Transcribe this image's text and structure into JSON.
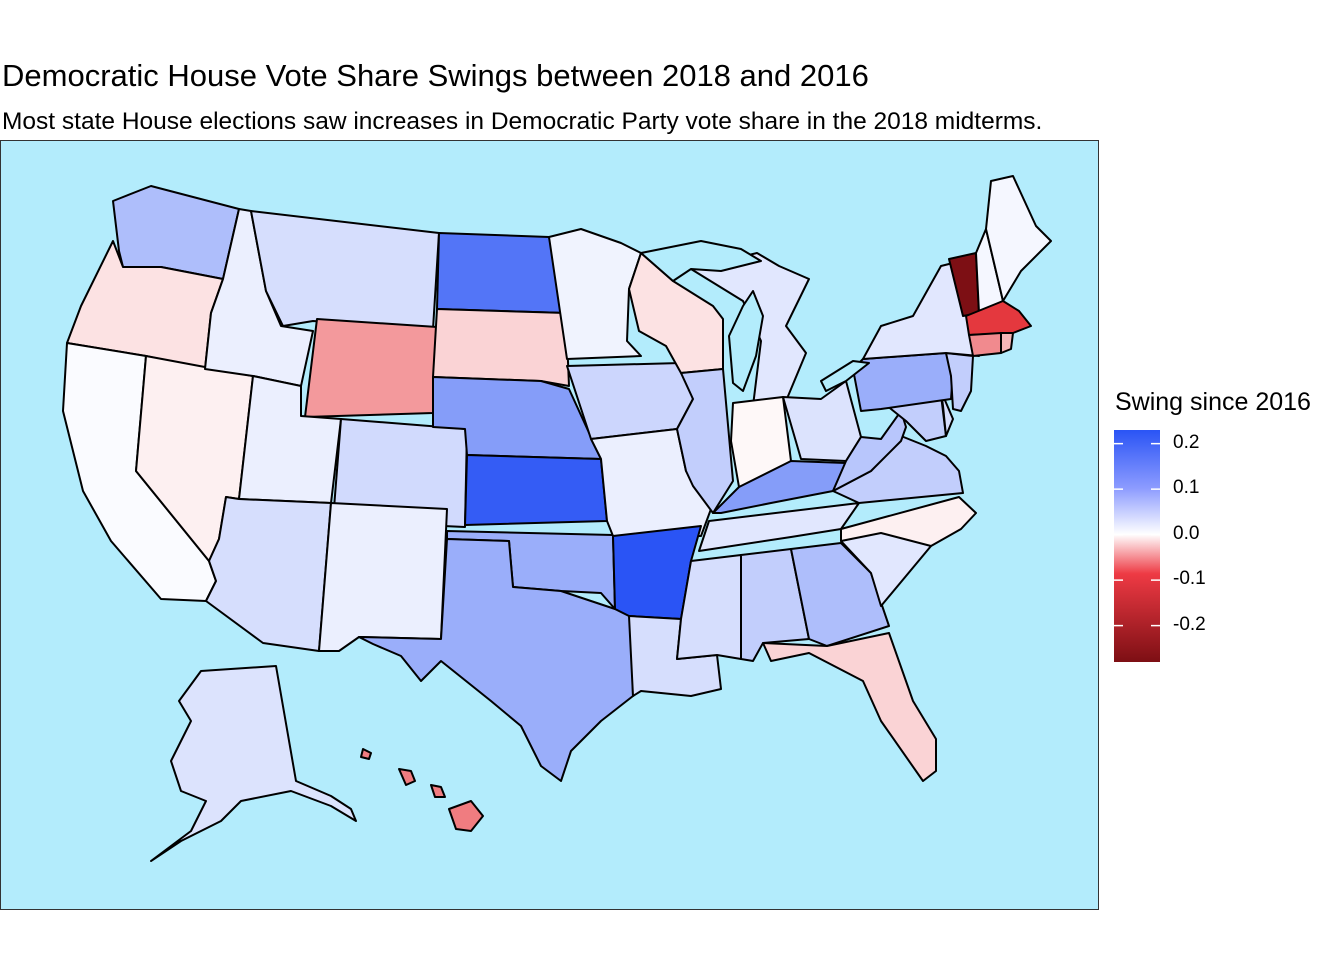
{
  "title": "Democratic House Vote Share Swings between 2018 and 2016",
  "subtitle": "Most state House elections saw increases in Democratic Party vote share in the 2018 midterms.",
  "legend": {
    "title": "Swing since 2016",
    "ticks": [
      "0.2",
      "0.1",
      "0.0",
      "-0.1",
      "-0.2"
    ],
    "tick_values": [
      0.2,
      0.1,
      0.0,
      -0.1,
      -0.2
    ],
    "range": [
      -0.28,
      0.23
    ],
    "colors": {
      "high": "#2a54f5",
      "mid": "#ffffff",
      "low": "#7d0f14"
    },
    "placement": "right"
  },
  "colors": {
    "ocean": "#b3ecfc",
    "border": "#000000"
  },
  "chart_data": {
    "type": "choropleth",
    "variable": "Swing since 2016",
    "states": [
      {
        "name": "Washington",
        "value": 0.08
      },
      {
        "name": "Oregon",
        "value": -0.02
      },
      {
        "name": "California",
        "value": 0.005
      },
      {
        "name": "Nevada",
        "value": -0.01
      },
      {
        "name": "Idaho",
        "value": 0.02
      },
      {
        "name": "Montana",
        "value": 0.04
      },
      {
        "name": "Wyoming",
        "value": -0.07
      },
      {
        "name": "Utah",
        "value": 0.02
      },
      {
        "name": "Arizona",
        "value": 0.04
      },
      {
        "name": "Colorado",
        "value": 0.045
      },
      {
        "name": "New Mexico",
        "value": 0.02
      },
      {
        "name": "North Dakota",
        "value": 0.17
      },
      {
        "name": "South Dakota",
        "value": -0.03
      },
      {
        "name": "Nebraska",
        "value": 0.12
      },
      {
        "name": "Kansas",
        "value": 0.2
      },
      {
        "name": "Oklahoma",
        "value": 0.1
      },
      {
        "name": "Texas",
        "value": 0.1
      },
      {
        "name": "Minnesota",
        "value": 0.015
      },
      {
        "name": "Iowa",
        "value": 0.05
      },
      {
        "name": "Missouri",
        "value": 0.02
      },
      {
        "name": "Arkansas",
        "value": 0.21
      },
      {
        "name": "Louisiana",
        "value": 0.04
      },
      {
        "name": "Wisconsin",
        "value": -0.02
      },
      {
        "name": "Illinois",
        "value": 0.06
      },
      {
        "name": "Michigan",
        "value": 0.03
      },
      {
        "name": "Indiana",
        "value": -0.005
      },
      {
        "name": "Ohio",
        "value": 0.035
      },
      {
        "name": "Kentucky",
        "value": 0.12
      },
      {
        "name": "Tennessee",
        "value": 0.03
      },
      {
        "name": "Mississippi",
        "value": 0.04
      },
      {
        "name": "Alabama",
        "value": 0.06
      },
      {
        "name": "Georgia",
        "value": 0.08
      },
      {
        "name": "Florida",
        "value": -0.03
      },
      {
        "name": "South Carolina",
        "value": 0.03
      },
      {
        "name": "North Carolina",
        "value": -0.01
      },
      {
        "name": "Virginia",
        "value": 0.06
      },
      {
        "name": "West Virginia",
        "value": 0.07
      },
      {
        "name": "Maryland",
        "value": 0.06
      },
      {
        "name": "Delaware",
        "value": 0.04
      },
      {
        "name": "Pennsylvania",
        "value": 0.1
      },
      {
        "name": "New Jersey",
        "value": 0.06
      },
      {
        "name": "New York",
        "value": 0.03
      },
      {
        "name": "Connecticut",
        "value": -0.08
      },
      {
        "name": "Rhode Island",
        "value": -0.05
      },
      {
        "name": "Massachusetts",
        "value": -0.14
      },
      {
        "name": "Vermont",
        "value": -0.27
      },
      {
        "name": "New Hampshire",
        "value": 0.01
      },
      {
        "name": "Maine",
        "value": 0.01
      },
      {
        "name": "Alaska",
        "value": 0.035
      },
      {
        "name": "Hawaii",
        "value": -0.09
      }
    ]
  }
}
